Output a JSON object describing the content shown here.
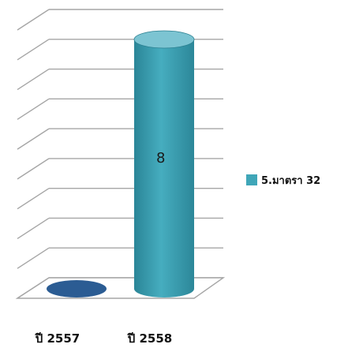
{
  "chart_data": {
    "type": "bar",
    "categories": [
      "ปี 2557",
      "ปี 2558"
    ],
    "series": [
      {
        "name": "5.มาตรา 32",
        "values": [
          0,
          8
        ]
      }
    ],
    "data_labels": [
      "",
      "8"
    ],
    "ylim": [
      0,
      8.6
    ],
    "grid": true,
    "legend": "right",
    "colors": {
      "bar": "#3fa6b8",
      "bar_dark": "#2a7f90",
      "bar_top": "#7cc4d2",
      "zero_ellipse": "#2b5c93",
      "grid": "#a6a6a6",
      "legend_swatch": "#3fa6b8"
    }
  }
}
